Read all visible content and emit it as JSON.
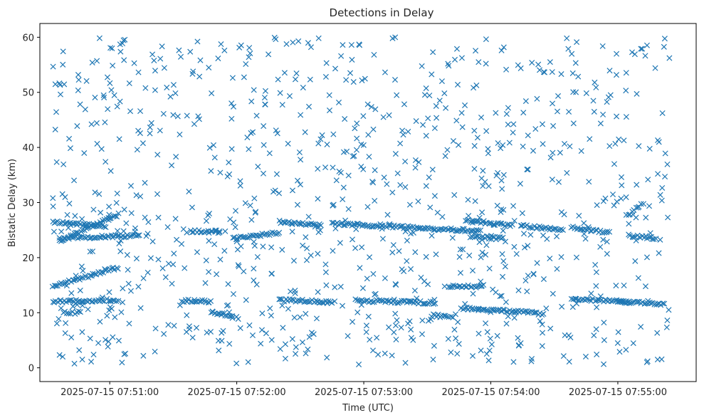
{
  "chart_data": {
    "type": "scatter",
    "title": "Detections in Delay",
    "xlabel": "Time (UTC)",
    "ylabel": "Bistatic Delay (km)",
    "marker": "x",
    "color": "#1f77b4",
    "grid": false,
    "legend": "none",
    "xlim": [
      "2025-07-15 07:50:27",
      "2025-07-15 07:55:37"
    ],
    "ylim": [
      -2.5,
      62.5
    ],
    "xticks": [
      "2025-07-15 07:51:00",
      "2025-07-15 07:52:00",
      "2025-07-15 07:53:00",
      "2025-07-15 07:54:00",
      "2025-07-15 07:55:00"
    ],
    "yticks": [
      "0",
      "10",
      "20",
      "30",
      "40",
      "50",
      "60"
    ],
    "time_range": [
      "2025-07-15 07:50:33",
      "2025-07-15 07:55:25"
    ],
    "tracks": [
      {
        "t_start": "2025-07-15 07:50:33",
        "t_end": "2025-07-15 07:51:04",
        "y_start": 14.8,
        "y_end": 18.2
      },
      {
        "t_start": "2025-07-15 07:50:33",
        "t_end": "2025-07-15 07:51:04",
        "y_start": 12.0,
        "y_end": 12.3
      },
      {
        "t_start": "2025-07-15 07:50:36",
        "t_end": "2025-07-15 07:51:04",
        "y_start": 23.0,
        "y_end": 27.8
      },
      {
        "t_start": "2025-07-15 07:50:33",
        "t_end": "2025-07-15 07:50:58",
        "y_start": 26.5,
        "y_end": 25.6
      },
      {
        "t_start": "2025-07-15 07:50:36",
        "t_end": "2025-07-15 07:51:14",
        "y_start": 23.5,
        "y_end": 24.0
      },
      {
        "t_start": "2025-07-15 07:50:38",
        "t_end": "2025-07-15 07:50:46",
        "y_start": 10.0,
        "y_end": 10.0
      },
      {
        "t_start": "2025-07-15 07:51:38",
        "t_end": "2025-07-15 07:51:52",
        "y_start": 24.8,
        "y_end": 24.7
      },
      {
        "t_start": "2025-07-15 07:51:34",
        "t_end": "2025-07-15 07:51:48",
        "y_start": 12.2,
        "y_end": 12.0
      },
      {
        "t_start": "2025-07-15 07:51:48",
        "t_end": "2025-07-15 07:51:58",
        "y_start": 10.0,
        "y_end": 9.5
      },
      {
        "t_start": "2025-07-15 07:51:58",
        "t_end": "2025-07-15 07:52:20",
        "y_start": 23.5,
        "y_end": 24.5
      },
      {
        "t_start": "2025-07-15 07:52:20",
        "t_end": "2025-07-15 07:52:40",
        "y_start": 26.5,
        "y_end": 25.8
      },
      {
        "t_start": "2025-07-15 07:52:20",
        "t_end": "2025-07-15 07:52:46",
        "y_start": 12.3,
        "y_end": 11.9
      },
      {
        "t_start": "2025-07-15 07:52:45",
        "t_end": "2025-07-15 07:53:55",
        "y_start": 26.2,
        "y_end": 24.8
      },
      {
        "t_start": "2025-07-15 07:52:56",
        "t_end": "2025-07-15 07:53:14",
        "y_start": 12.2,
        "y_end": 12.0
      },
      {
        "t_start": "2025-07-15 07:53:14",
        "t_end": "2025-07-15 07:53:34",
        "y_start": 12.0,
        "y_end": 11.8
      },
      {
        "t_start": "2025-07-15 07:53:32",
        "t_end": "2025-07-15 07:53:42",
        "y_start": 9.5,
        "y_end": 9.3
      },
      {
        "t_start": "2025-07-15 07:53:40",
        "t_end": "2025-07-15 07:53:56",
        "y_start": 14.8,
        "y_end": 14.8
      },
      {
        "t_start": "2025-07-15 07:53:46",
        "t_end": "2025-07-15 07:54:12",
        "y_start": 10.8,
        "y_end": 10.2
      },
      {
        "t_start": "2025-07-15 07:53:48",
        "t_end": "2025-07-15 07:54:10",
        "y_start": 26.8,
        "y_end": 25.8
      },
      {
        "t_start": "2025-07-15 07:53:50",
        "t_end": "2025-07-15 07:54:05",
        "y_start": 23.8,
        "y_end": 23.5
      },
      {
        "t_start": "2025-07-15 07:54:12",
        "t_end": "2025-07-15 07:54:25",
        "y_start": 10.2,
        "y_end": 9.8
      },
      {
        "t_start": "2025-07-15 07:54:14",
        "t_end": "2025-07-15 07:54:34",
        "y_start": 25.8,
        "y_end": 25.0
      },
      {
        "t_start": "2025-07-15 07:54:38",
        "t_end": "2025-07-15 07:55:05",
        "y_start": 12.5,
        "y_end": 12.0
      },
      {
        "t_start": "2025-07-15 07:54:38",
        "t_end": "2025-07-15 07:54:56",
        "y_start": 25.5,
        "y_end": 24.5
      },
      {
        "t_start": "2025-07-15 07:55:00",
        "t_end": "2025-07-15 07:55:22",
        "y_start": 12.0,
        "y_end": 11.5
      },
      {
        "t_start": "2025-07-15 07:55:05",
        "t_end": "2025-07-15 07:55:18",
        "y_start": 24.0,
        "y_end": 23.5
      },
      {
        "t_start": "2025-07-15 07:55:04",
        "t_end": "2025-07-15 07:55:12",
        "y_start": 27.5,
        "y_end": 30.0
      }
    ]
  }
}
